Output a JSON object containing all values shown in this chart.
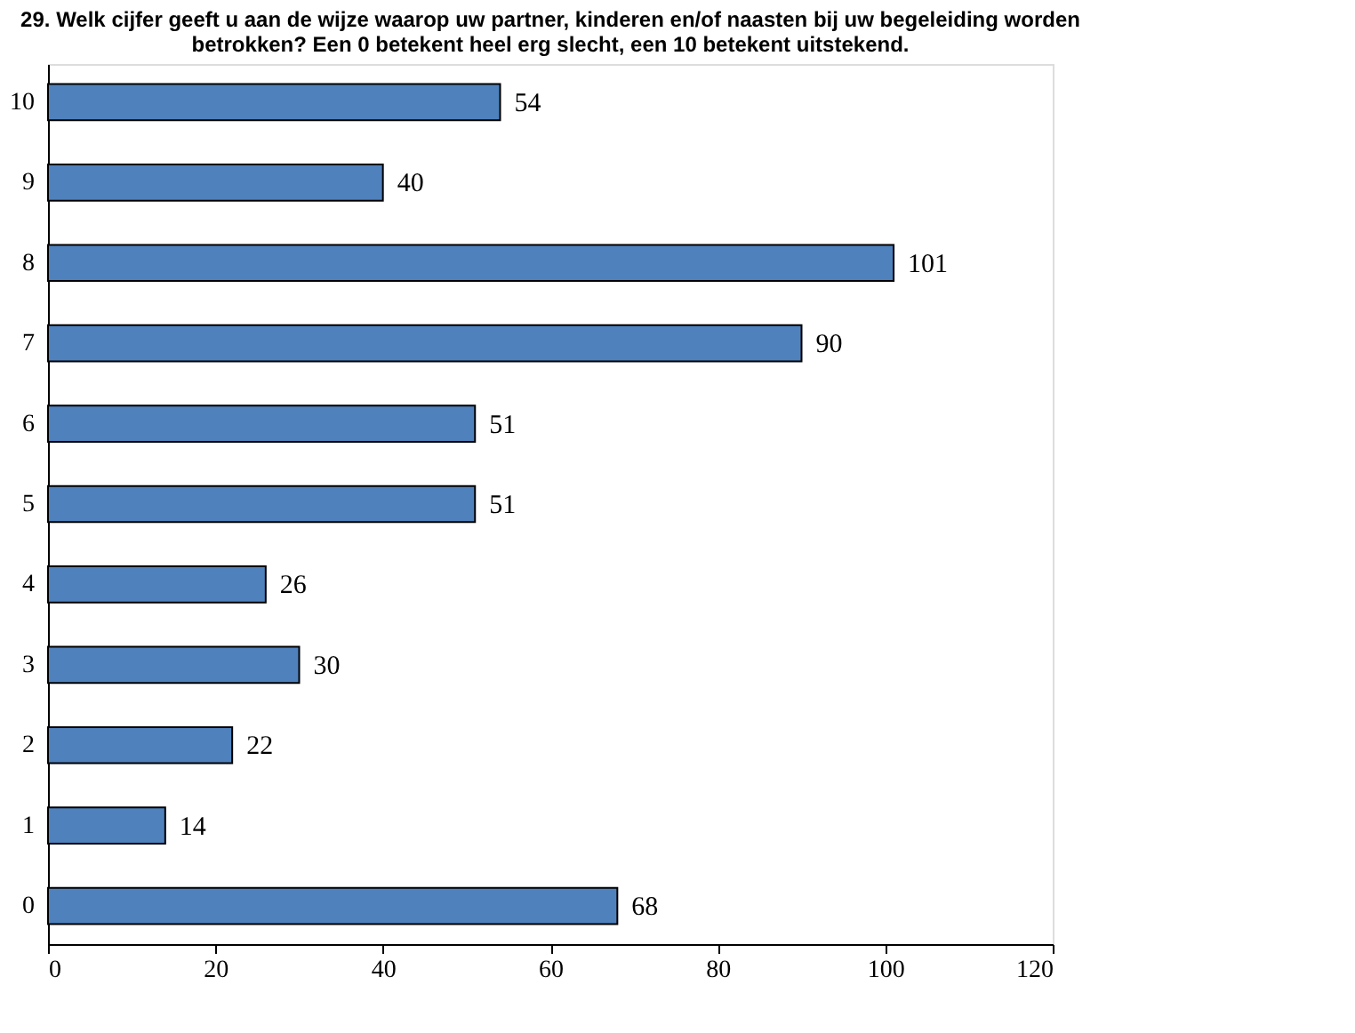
{
  "chart_data": {
    "type": "bar",
    "orientation": "horizontal",
    "title": "29. Welk cijfer geeft u aan de wijze waarop uw partner, kinderen en/of naasten bij uw begeleiding worden betrokken? Een 0 betekent heel erg slecht, een 10 betekent uitstekend.",
    "categories": [
      "10",
      "9",
      "8",
      "7",
      "6",
      "5",
      "4",
      "3",
      "2",
      "1",
      "0"
    ],
    "values": [
      54,
      40,
      101,
      90,
      51,
      51,
      26,
      30,
      22,
      14,
      68
    ],
    "color": "#4f81bd",
    "xlim": [
      0,
      120
    ],
    "xticks": [
      0,
      20,
      40,
      60,
      80,
      100,
      120
    ],
    "grid": false,
    "data_labels": true
  }
}
